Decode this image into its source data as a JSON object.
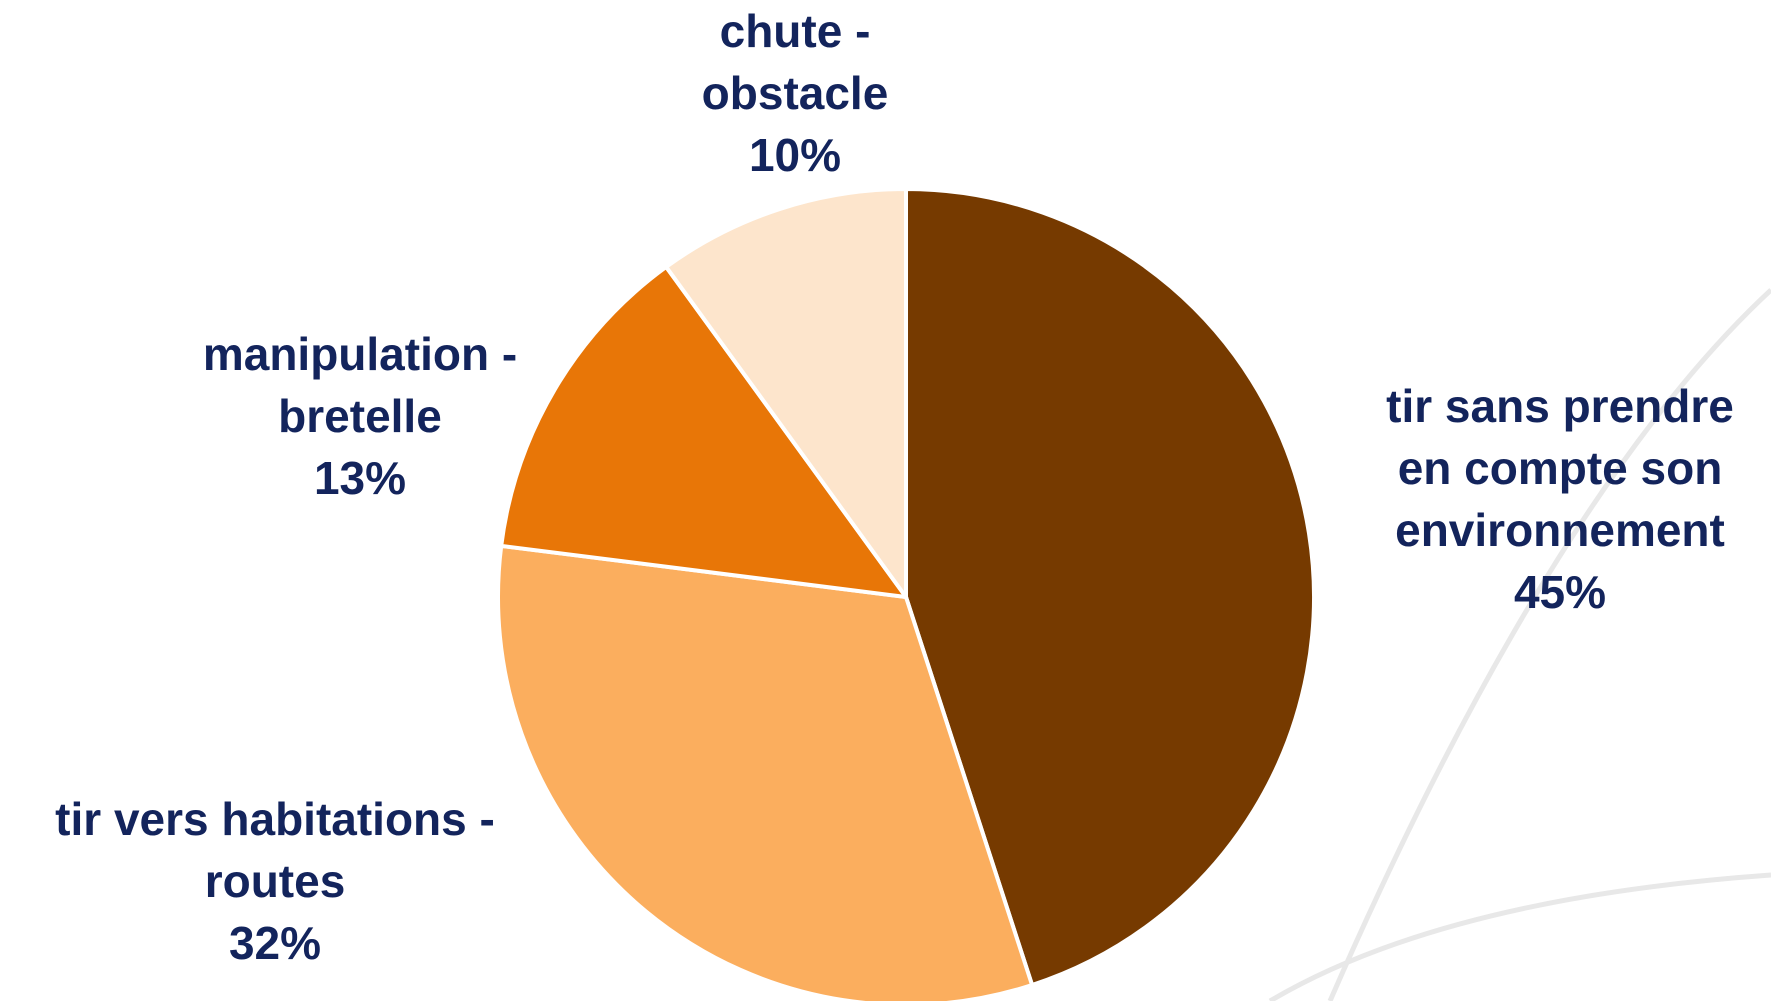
{
  "chart_data": {
    "type": "pie",
    "slices": [
      {
        "label": [
          "tir sans prendre",
          "en compte son",
          "environnement"
        ],
        "value": 45,
        "value_label": "45%",
        "color": "#763a00"
      },
      {
        "label": [
          "tir vers habitations -",
          "routes"
        ],
        "value": 32,
        "value_label": "32%",
        "color": "#fbae5e"
      },
      {
        "label": [
          "manipulation -",
          "bretelle"
        ],
        "value": 13,
        "value_label": "13%",
        "color": "#e87607"
      },
      {
        "label": [
          "chute -",
          "obstacle"
        ],
        "value": 10,
        "value_label": "10%",
        "color": "#fde5cc"
      }
    ],
    "start_angle": "12 o'clock",
    "direction": "clockwise",
    "legend": "none",
    "label_color": "#13245c",
    "separator_color": "#ffffff",
    "background_curve_color": "#e8e8e8"
  }
}
